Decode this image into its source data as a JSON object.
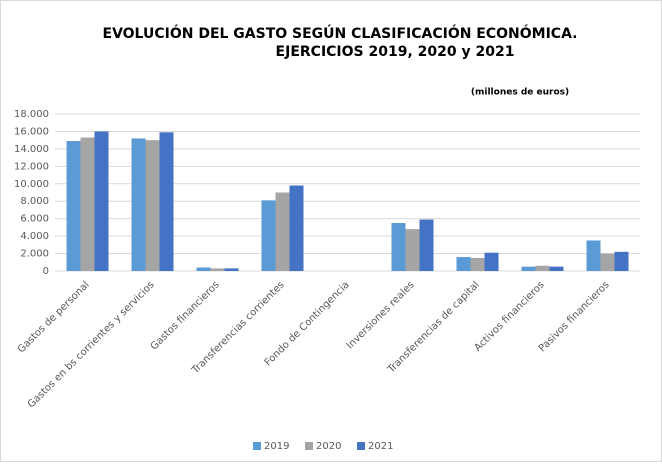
{
  "chart_data": {
    "type": "bar",
    "title": [
      "EVOLUCIÓN DEL GASTO SEGÚN CLASIFICACIÓN ECONÓMICA.",
      "EJERCICIOS 2019, 2020 y 2021"
    ],
    "subtitle": "(millones de euros)",
    "categories": [
      "Gastos de personal",
      "Gastos en bs corrientes y servicios",
      "Gastos financieros",
      "Transferencias corrientes",
      "Fondo de Contingencia",
      "Inversiones reales",
      "Transferencias de capital",
      "Activos financieros",
      "Pasivos financieros"
    ],
    "series": [
      {
        "name": "2019",
        "color": "#5b9bd5",
        "values": [
          14900,
          15200,
          400,
          8100,
          0,
          5500,
          1600,
          500,
          3500
        ]
      },
      {
        "name": "2020",
        "color": "#a5a5a5",
        "values": [
          15300,
          15000,
          300,
          9000,
          0,
          4800,
          1500,
          600,
          2000
        ]
      },
      {
        "name": "2021",
        "color": "#4472c4",
        "values": [
          16000,
          15900,
          300,
          9800,
          0,
          5900,
          2100,
          500,
          2200
        ]
      }
    ],
    "ylim": [
      0,
      18000
    ],
    "yticks": [
      0,
      {
        "value": 2000,
        "label": "2.000"
      },
      {
        "value": 4000,
        "label": "4.000"
      },
      {
        "value": 6000,
        "label": "6.000"
      },
      {
        "value": 8000,
        "label": "8.000"
      },
      {
        "value": 10000,
        "label": "10.000"
      },
      {
        "value": 12000,
        "label": "12.000"
      },
      {
        "value": 14000,
        "label": "14.000"
      },
      {
        "value": 16000,
        "label": "16.000"
      },
      {
        "value": 18000,
        "label": "18.000"
      }
    ],
    "grid": true,
    "legend": "bottom"
  }
}
